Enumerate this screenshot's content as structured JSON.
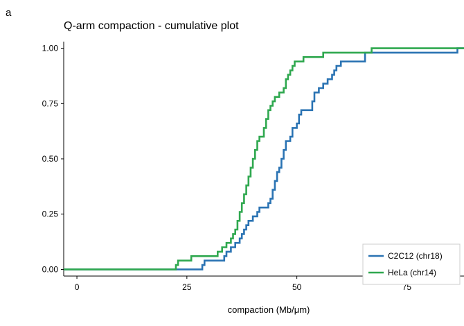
{
  "panel_label": "a",
  "chart_data": {
    "type": "line",
    "step": true,
    "title": "Q-arm compaction - cumulative plot",
    "xlabel": "compaction (Mb/μm)",
    "ylabel": "",
    "xlim": [
      -3,
      88
    ],
    "ylim": [
      -0.03,
      1.03
    ],
    "xticks": [
      0,
      25,
      50,
      75
    ],
    "yticks": [
      0.0,
      0.25,
      0.5,
      0.75,
      1.0
    ],
    "ytick_labels": [
      "0.00",
      "0.25",
      "0.50",
      "0.75",
      "1.00"
    ],
    "grid": false,
    "legend_position": "bottom-right",
    "series": [
      {
        "name": "C2C12 (chr18)",
        "color": "#2a73b3",
        "points": [
          [
            -3,
            0.0
          ],
          [
            28,
            0.0
          ],
          [
            28.5,
            0.02
          ],
          [
            29,
            0.04
          ],
          [
            33,
            0.04
          ],
          [
            33.5,
            0.06
          ],
          [
            34,
            0.08
          ],
          [
            35,
            0.1
          ],
          [
            36,
            0.12
          ],
          [
            37,
            0.14
          ],
          [
            37.5,
            0.16
          ],
          [
            38,
            0.18
          ],
          [
            38.5,
            0.2
          ],
          [
            39,
            0.22
          ],
          [
            40,
            0.24
          ],
          [
            41,
            0.26
          ],
          [
            41.5,
            0.28
          ],
          [
            43,
            0.28
          ],
          [
            43.5,
            0.3
          ],
          [
            44,
            0.32
          ],
          [
            44.5,
            0.36
          ],
          [
            45,
            0.4
          ],
          [
            45.5,
            0.44
          ],
          [
            46,
            0.46
          ],
          [
            46.5,
            0.5
          ],
          [
            47,
            0.54
          ],
          [
            47.5,
            0.58
          ],
          [
            48.5,
            0.6
          ],
          [
            49,
            0.64
          ],
          [
            50,
            0.66
          ],
          [
            50.5,
            0.7
          ],
          [
            51,
            0.72
          ],
          [
            53,
            0.72
          ],
          [
            53.5,
            0.76
          ],
          [
            54,
            0.8
          ],
          [
            55,
            0.82
          ],
          [
            56,
            0.84
          ],
          [
            57,
            0.86
          ],
          [
            58,
            0.88
          ],
          [
            58.5,
            0.9
          ],
          [
            59,
            0.92
          ],
          [
            60,
            0.94
          ],
          [
            65,
            0.94
          ],
          [
            65.5,
            0.98
          ],
          [
            86,
            0.98
          ],
          [
            86.5,
            1.0
          ],
          [
            88,
            1.0
          ]
        ]
      },
      {
        "name": "HeLa (chr14)",
        "color": "#2fa84f",
        "points": [
          [
            -3,
            0.0
          ],
          [
            22,
            0.0
          ],
          [
            22.5,
            0.02
          ],
          [
            23,
            0.04
          ],
          [
            25,
            0.04
          ],
          [
            26,
            0.06
          ],
          [
            31,
            0.06
          ],
          [
            32,
            0.08
          ],
          [
            33,
            0.1
          ],
          [
            34,
            0.12
          ],
          [
            35,
            0.14
          ],
          [
            35.5,
            0.16
          ],
          [
            36,
            0.18
          ],
          [
            36.5,
            0.22
          ],
          [
            37,
            0.26
          ],
          [
            37.5,
            0.3
          ],
          [
            38,
            0.34
          ],
          [
            38.5,
            0.38
          ],
          [
            39,
            0.42
          ],
          [
            39.5,
            0.46
          ],
          [
            40,
            0.5
          ],
          [
            40.5,
            0.54
          ],
          [
            41,
            0.58
          ],
          [
            41.5,
            0.6
          ],
          [
            42,
            0.6
          ],
          [
            42.5,
            0.64
          ],
          [
            43,
            0.68
          ],
          [
            43.5,
            0.72
          ],
          [
            44,
            0.74
          ],
          [
            44.5,
            0.76
          ],
          [
            45,
            0.78
          ],
          [
            46,
            0.8
          ],
          [
            47,
            0.82
          ],
          [
            47.5,
            0.86
          ],
          [
            48,
            0.88
          ],
          [
            48.5,
            0.9
          ],
          [
            49,
            0.92
          ],
          [
            49.5,
            0.94
          ],
          [
            51,
            0.94
          ],
          [
            51.5,
            0.96
          ],
          [
            55,
            0.96
          ],
          [
            56,
            0.98
          ],
          [
            66,
            0.98
          ],
          [
            67,
            1.0
          ],
          [
            88,
            1.0
          ]
        ]
      }
    ]
  }
}
